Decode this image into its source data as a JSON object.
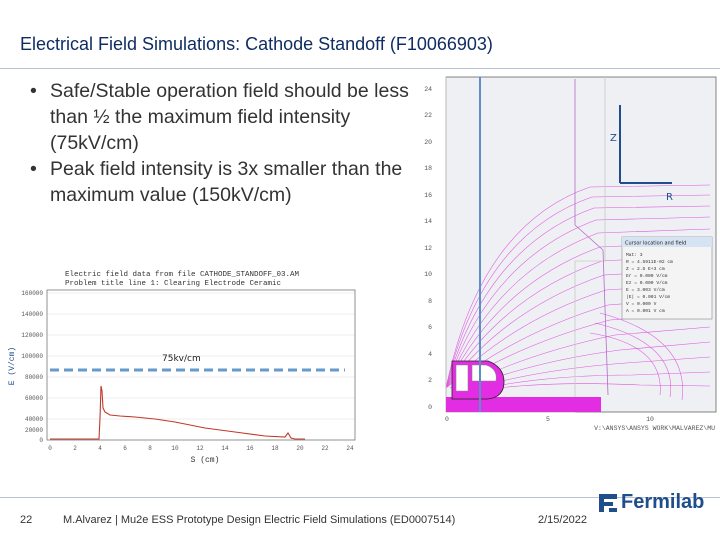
{
  "slide": {
    "title": "Electrical Field Simulations: Cathode Standoff (F10066903)",
    "bullets": [
      "Safe/Stable operation field should be less than ½ the maximum field intensity (75kV/cm)",
      "Peak field intensity is 3x smaller than the maximum value (150kV/cm)"
    ]
  },
  "field_plot": {
    "header_line1": "Electric field data from file CATHODE_STANDOFF_03.AM",
    "header_line2": "Problem title line 1: Clearing Electrode Ceramic",
    "ylabel": "E (V/cm)",
    "xlabel": "S (cm)",
    "annotation": "75kv/cm",
    "y_ticks": [
      "160000",
      "140000",
      "120000",
      "100000",
      "80000",
      "60000",
      "40000",
      "20000",
      "0"
    ],
    "x_ticks": [
      "0",
      "2",
      "4",
      "6",
      "8",
      "10",
      "12",
      "14",
      "16",
      "18",
      "20",
      "22",
      "24"
    ]
  },
  "geometry_plot": {
    "y_ticks": [
      "24",
      "22",
      "20",
      "18",
      "16",
      "14",
      "12",
      "10",
      "8",
      "6",
      "4",
      "2",
      "0"
    ],
    "x_ticks": [
      "0",
      "5",
      "10"
    ],
    "axis_z": "Z",
    "axis_r": "R",
    "path_label": "V:\\ANSYS\\ANSYS WORK\\MALVAREZ\\MU",
    "dialog_title": "Cursor location and field",
    "dialog_lines": [
      "Mat: 3",
      "R = 4.5911E-02 cm",
      "Z = 2.5 E+3 cm",
      "Er = 0.000 V/cm",
      "Ez = 0.000 V/cm",
      "E = 3.003 V/cm",
      "|E| = 0.001 V/cm",
      "V = 0.000 V",
      "A = 0.001 V cm"
    ]
  },
  "footer": {
    "page_number": "22",
    "text": "M.Alvarez | Mu2e ESS Prototype Design Electric Field Simulations (ED0007514)",
    "date": "2/15/2022",
    "logo": "Fermilab"
  },
  "colors": {
    "title": "#0f2d63",
    "field_curve": "#c0392b",
    "contours": "#e055e0",
    "boundary": "#e22de2",
    "annotation_line": "#6699cc",
    "logo": "#1f4e8c"
  }
}
